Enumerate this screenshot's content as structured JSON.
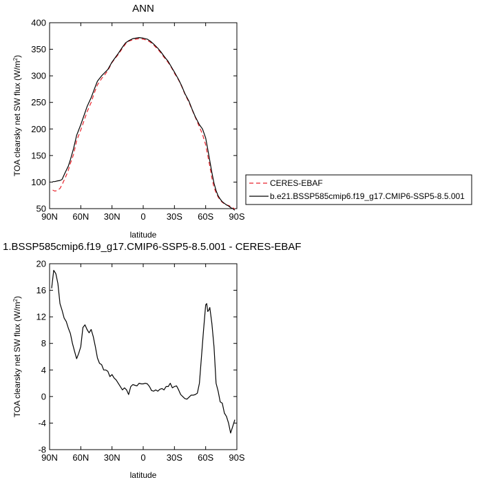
{
  "chart_data": [
    {
      "type": "line",
      "title": "ANN",
      "xlabel": "latitude",
      "ylabel": "TOA clearsky net SW flux (W/m",
      "ylabel_sup": "2",
      "ylabel_end": ")",
      "xlim": [
        90,
        -90
      ],
      "ylim": [
        50,
        400
      ],
      "xticks": [
        {
          "value": 90,
          "label": "90N"
        },
        {
          "value": 60,
          "label": "60N"
        },
        {
          "value": 30,
          "label": "30N"
        },
        {
          "value": 0,
          "label": "0"
        },
        {
          "value": -30,
          "label": "30S"
        },
        {
          "value": -60,
          "label": "60S"
        },
        {
          "value": -90,
          "label": "90S"
        }
      ],
      "yticks": [
        {
          "value": 50,
          "label": "50"
        },
        {
          "value": 100,
          "label": "100"
        },
        {
          "value": 150,
          "label": "150"
        },
        {
          "value": 200,
          "label": "200"
        },
        {
          "value": 250,
          "label": "250"
        },
        {
          "value": 300,
          "label": "300"
        },
        {
          "value": 350,
          "label": "350"
        },
        {
          "value": 400,
          "label": "400"
        }
      ],
      "legend_position": "right",
      "series": [
        {
          "name": "CERES-EBAF",
          "color": "#e8222a",
          "dash": "dashed",
          "x": [
            87,
            85,
            83,
            80,
            78,
            75,
            72,
            70,
            67,
            64,
            60,
            57,
            54,
            50,
            47,
            44,
            40,
            37,
            34,
            30,
            27,
            24,
            20,
            17,
            14,
            10,
            7,
            4,
            0,
            -4,
            -7,
            -10,
            -14,
            -17,
            -20,
            -24,
            -27,
            -30,
            -34,
            -37,
            -40,
            -44,
            -47,
            -50,
            -54,
            -57,
            -60,
            -62,
            -64,
            -66,
            -68,
            -70,
            -72,
            -74,
            -76,
            -78,
            -80,
            -82,
            -84,
            -86,
            -88
          ],
          "values": [
            85,
            83,
            84,
            88,
            95,
            108,
            122,
            135,
            152,
            178,
            198,
            215,
            232,
            250,
            268,
            283,
            295,
            302,
            310,
            325,
            333,
            340,
            352,
            360,
            365,
            368,
            369,
            370,
            369,
            367,
            363,
            358,
            350,
            343,
            335,
            325,
            316,
            305,
            292,
            280,
            266,
            250,
            236,
            222,
            204,
            190,
            170,
            150,
            130,
            108,
            90,
            80,
            72,
            66,
            62,
            59,
            57,
            56,
            54,
            52,
            49
          ]
        },
        {
          "name": "b.e21.BSSP585cmip6.f19_g17.CMIP6-SSP5-8.5.001",
          "color": "#000000",
          "dash": "solid",
          "x": [
            87,
            85,
            83,
            80,
            78,
            75,
            72,
            70,
            67,
            64,
            60,
            57,
            54,
            50,
            47,
            44,
            40,
            37,
            34,
            30,
            27,
            24,
            20,
            17,
            14,
            10,
            7,
            4,
            0,
            -4,
            -7,
            -10,
            -14,
            -17,
            -20,
            -24,
            -27,
            -30,
            -34,
            -37,
            -40,
            -44,
            -47,
            -50,
            -54,
            -57,
            -60,
            -62,
            -64,
            -66,
            -68,
            -70,
            -72,
            -74,
            -76,
            -78,
            -80,
            -82,
            -84,
            -86,
            -88
          ],
          "values": [
            101,
            101,
            102,
            103,
            105,
            118,
            130,
            142,
            163,
            188,
            208,
            225,
            242,
            259,
            275,
            290,
            300,
            306,
            312,
            326,
            334,
            342,
            354,
            362,
            366,
            370,
            371,
            372,
            371,
            369,
            365,
            360,
            352,
            345,
            337,
            327,
            317,
            307,
            293,
            281,
            267,
            252,
            237,
            223,
            208,
            200,
            183,
            162,
            140,
            118,
            98,
            84,
            74,
            68,
            63,
            60,
            57,
            55,
            52,
            50,
            47
          ]
        }
      ]
    },
    {
      "type": "line",
      "title": "1.BSSP585cmip6.f19_g17.CMIP6-SSP5-8.5.001 - CERES-EBAF",
      "xlabel": "latitude",
      "ylabel": "TOA clearsky net SW flux (W/m",
      "ylabel_sup": "2",
      "ylabel_end": ")",
      "xlim": [
        90,
        -90
      ],
      "ylim": [
        -8,
        20
      ],
      "xticks": [
        {
          "value": 90,
          "label": "90N"
        },
        {
          "value": 60,
          "label": "60N"
        },
        {
          "value": 30,
          "label": "30N"
        },
        {
          "value": 0,
          "label": "0"
        },
        {
          "value": -30,
          "label": "30S"
        },
        {
          "value": -60,
          "label": "60S"
        },
        {
          "value": -90,
          "label": "90S"
        }
      ],
      "yticks": [
        {
          "value": -8,
          "label": "-8"
        },
        {
          "value": -4,
          "label": "-4"
        },
        {
          "value": 0,
          "label": "0"
        },
        {
          "value": 4,
          "label": "4"
        },
        {
          "value": 8,
          "label": "8"
        },
        {
          "value": 12,
          "label": "12"
        },
        {
          "value": 16,
          "label": "16"
        },
        {
          "value": 20,
          "label": "20"
        }
      ],
      "series": [
        {
          "color": "#000000",
          "dash": "solid",
          "x": [
            88,
            86,
            84,
            82,
            80,
            78,
            76,
            74,
            72,
            70,
            68,
            66,
            64,
            62,
            60,
            58,
            56,
            54,
            52,
            50,
            48,
            46,
            44,
            42,
            40,
            38,
            36,
            34,
            32,
            30,
            28,
            26,
            24,
            22,
            20,
            18,
            16,
            14,
            12,
            10,
            8,
            6,
            4,
            2,
            0,
            -2,
            -4,
            -6,
            -8,
            -10,
            -12,
            -14,
            -16,
            -18,
            -20,
            -22,
            -24,
            -26,
            -28,
            -30,
            -32,
            -34,
            -36,
            -38,
            -40,
            -42,
            -44,
            -46,
            -48,
            -50,
            -52,
            -54,
            -56,
            -58,
            -60,
            -61,
            -62,
            -63,
            -64,
            -66,
            -68,
            -70,
            -72,
            -74,
            -76,
            -78,
            -80,
            -82,
            -84,
            -86,
            -88
          ],
          "values": [
            16.3,
            19.0,
            18.5,
            17.0,
            14.0,
            13.0,
            11.8,
            11.3,
            10.3,
            9.5,
            8.0,
            6.8,
            5.7,
            6.5,
            7.5,
            10.4,
            10.8,
            10.1,
            9.6,
            10.1,
            9.0,
            7.5,
            5.8,
            5.0,
            4.8,
            4.0,
            4.0,
            3.8,
            3.0,
            3.3,
            2.8,
            2.5,
            2.0,
            1.5,
            1.0,
            1.3,
            1.0,
            0.3,
            1.5,
            1.8,
            1.7,
            1.6,
            2.0,
            1.9,
            1.9,
            2.0,
            1.9,
            1.5,
            0.9,
            0.8,
            1.0,
            0.8,
            1.1,
            1.2,
            1.0,
            1.5,
            1.5,
            2.0,
            1.3,
            1.5,
            1.6,
            1.0,
            0.3,
            0.0,
            -0.3,
            -0.4,
            -0.1,
            0.2,
            0.2,
            0.3,
            0.5,
            2.0,
            6.0,
            10.0,
            13.8,
            14.0,
            12.8,
            13.0,
            13.4,
            11.0,
            7.5,
            2.0,
            0.8,
            -0.8,
            -1.0,
            -2.5,
            -3.0,
            -4.0,
            -5.5,
            -4.5,
            -3.5
          ]
        }
      ]
    }
  ]
}
